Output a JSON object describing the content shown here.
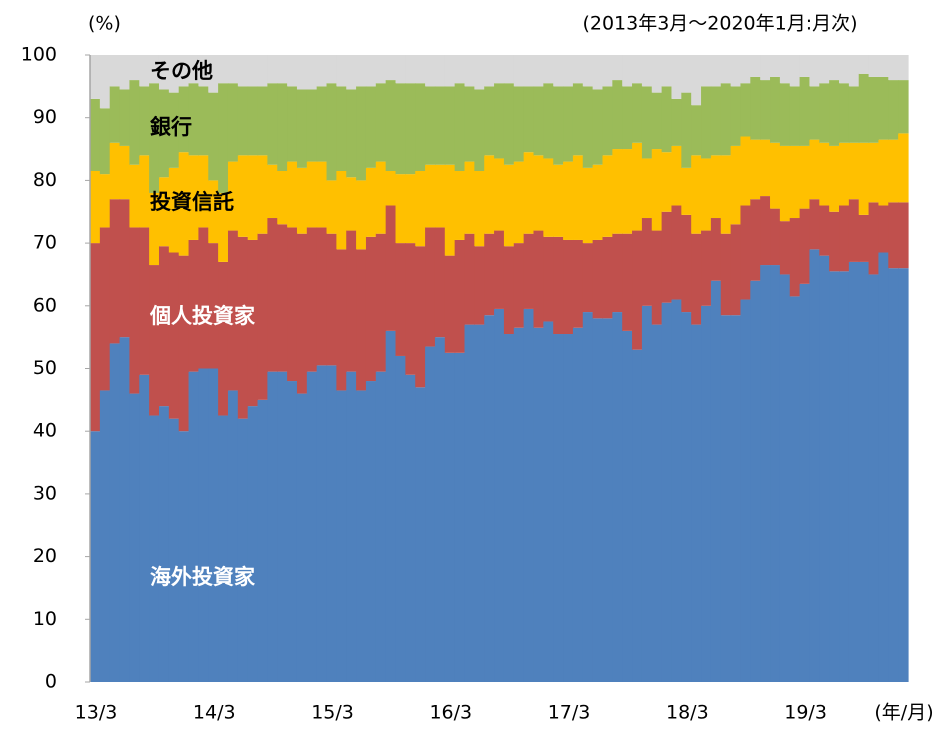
{
  "chart_data": {
    "type": "stacked-bar",
    "y_unit_label": "(%)",
    "subtitle": "(2013年3月～2020年1月:月次)",
    "x_unit_label": "(年/月)",
    "categories": [
      "13/3",
      null,
      null,
      null,
      null,
      null,
      null,
      null,
      null,
      null,
      null,
      null,
      "14/3",
      null,
      null,
      null,
      null,
      null,
      null,
      null,
      null,
      null,
      null,
      null,
      "15/3",
      null,
      null,
      null,
      null,
      null,
      null,
      null,
      null,
      null,
      null,
      null,
      "16/3",
      null,
      null,
      null,
      null,
      null,
      null,
      null,
      null,
      null,
      null,
      null,
      "17/3",
      null,
      null,
      null,
      null,
      null,
      null,
      null,
      null,
      null,
      null,
      null,
      "18/3",
      null,
      null,
      null,
      null,
      null,
      null,
      null,
      null,
      null,
      null,
      null,
      "19/3",
      null,
      null,
      null,
      null,
      null,
      null,
      null,
      null,
      null,
      null
    ],
    "series": [
      {
        "name": "海外投資家",
        "color": "#4f81bd",
        "label_color": "#ffffff",
        "values": [
          40,
          46.5,
          54,
          55,
          46,
          49,
          42.5,
          44,
          42,
          40,
          49.5,
          50,
          50,
          42.5,
          46.5,
          42,
          44,
          45,
          49.5,
          49.5,
          48,
          46,
          49.5,
          50.5,
          50.5,
          46.5,
          49.5,
          46.5,
          48,
          49.5,
          56,
          52,
          49,
          47,
          53.5,
          55,
          52.5,
          52.5,
          57,
          57,
          58.5,
          59.5,
          55.5,
          56.5,
          59.5,
          56.5,
          57.5,
          55.5,
          55.5,
          56.5,
          59,
          58,
          58,
          59,
          56,
          53,
          60,
          57,
          60.5,
          61,
          59,
          57,
          60,
          64,
          58.5,
          58.5,
          61,
          64,
          66.5,
          66.5,
          65,
          61.5,
          63.5,
          69,
          68,
          65.5,
          65.5,
          67,
          67,
          65,
          68.5,
          66,
          66
        ]
      },
      {
        "name": "個人投資家",
        "color": "#c0504d",
        "label_color": "#ffffff",
        "values": [
          30,
          26,
          23,
          22,
          26.5,
          23.5,
          24,
          25.5,
          26.5,
          28,
          21,
          22.5,
          20,
          24.5,
          25.5,
          29,
          26.5,
          26.5,
          24.5,
          23.5,
          24.5,
          25.5,
          23,
          22,
          21,
          22.5,
          22.5,
          22.5,
          23,
          22,
          20,
          18,
          21,
          22.5,
          19,
          17.5,
          15.5,
          18,
          14.5,
          12.5,
          13,
          12.5,
          14,
          13.5,
          12,
          15.5,
          13.5,
          15.5,
          15,
          14,
          11,
          12.5,
          13,
          12.5,
          15.5,
          19,
          14,
          15,
          14.5,
          15,
          15.5,
          14.5,
          12,
          10,
          13,
          14.5,
          15,
          13,
          11,
          9,
          8.5,
          12.5,
          12,
          8,
          8,
          9.5,
          10.5,
          10,
          7.5,
          11.5,
          7.5,
          10.5,
          10.5
        ]
      },
      {
        "name": "投資信託",
        "color": "#ffc000",
        "label_color": "#000000",
        "values": [
          11.5,
          8.5,
          9,
          8.5,
          10,
          11.5,
          11.5,
          11,
          13.5,
          16.5,
          13.5,
          11.5,
          10,
          11,
          11,
          13,
          13.5,
          12.5,
          8.5,
          8.5,
          10.5,
          10.5,
          10.5,
          10.5,
          8.5,
          12.5,
          8.5,
          11,
          11,
          11.5,
          5.5,
          11,
          11,
          12,
          10,
          10,
          14.5,
          11,
          11.5,
          12,
          12.5,
          11.5,
          13,
          13,
          13,
          12,
          12.5,
          11.5,
          12.5,
          13.5,
          12,
          12,
          13,
          13.5,
          13.5,
          14,
          9.5,
          13,
          9.5,
          9.5,
          7.5,
          12.5,
          11.5,
          10,
          12.5,
          12.5,
          11,
          9.5,
          9,
          10.5,
          12,
          11.5,
          10,
          9.5,
          10,
          10.5,
          10,
          9,
          11.5,
          9.5,
          10.5,
          10,
          11
        ]
      },
      {
        "name": "銀行",
        "color": "#9bbb59",
        "label_color": "#000000",
        "values": [
          11.5,
          10.5,
          9,
          9,
          13.5,
          11,
          17.5,
          14,
          12,
          10.5,
          11.5,
          11,
          14,
          17.5,
          12.5,
          11,
          11,
          11,
          13,
          14,
          12,
          12.5,
          11.5,
          12,
          15.5,
          13.5,
          14,
          15,
          13,
          12.5,
          14.5,
          14.5,
          14.5,
          14,
          12.5,
          12.5,
          12.5,
          14,
          12,
          13,
          11,
          12,
          13,
          12,
          10.5,
          11,
          12,
          12.5,
          12,
          11.5,
          13,
          12,
          11,
          11,
          10,
          9.5,
          11.5,
          9,
          10.5,
          7.5,
          12,
          8,
          11.5,
          11,
          11.5,
          9.5,
          8.5,
          10,
          9.5,
          10.5,
          10,
          9.5,
          11,
          8.5,
          9.5,
          10.5,
          9.5,
          9,
          11,
          10.5,
          10,
          9.5,
          8.5
        ]
      },
      {
        "name": "その他",
        "color": "#d9d9d9",
        "label_color": "#000000",
        "values": [
          7,
          8.5,
          5,
          5.5,
          4,
          5,
          4.5,
          5.5,
          6,
          5,
          4.5,
          5,
          6,
          4.5,
          4.5,
          5,
          5,
          5,
          4.5,
          4.5,
          5,
          5.5,
          5.5,
          5,
          4.5,
          5,
          5.5,
          5,
          5,
          4.5,
          4,
          4.5,
          4.5,
          4.5,
          5,
          5,
          5,
          4.5,
          5,
          5.5,
          5,
          4.5,
          4.5,
          5,
          5,
          5,
          4.5,
          5,
          5,
          4.5,
          5,
          5.5,
          5,
          4,
          5,
          4.5,
          5,
          6,
          5,
          7,
          6,
          8,
          5,
          5,
          4.5,
          5,
          4.5,
          3.5,
          4,
          3.5,
          4.5,
          5,
          3.5,
          5,
          4.5,
          4,
          4.5,
          5,
          3,
          3.5,
          3.5,
          4,
          4
        ]
      }
    ],
    "ylim": [
      0,
      100
    ],
    "yticks": [
      0,
      10,
      20,
      30,
      40,
      50,
      60,
      70,
      80,
      90,
      100
    ],
    "grid": false
  }
}
